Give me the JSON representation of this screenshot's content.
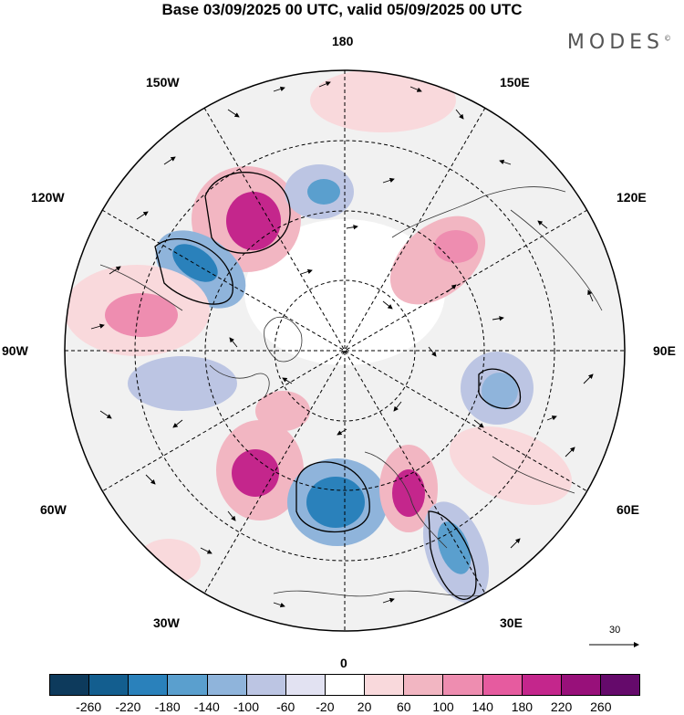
{
  "title": "Base 03/09/2025 00 UTC, valid 05/09/2025 00 UTC",
  "brand": "MODES",
  "brand_mark": "©",
  "longitude_labels": {
    "top": "180",
    "top_left": "150W",
    "top_right": "150E",
    "upper_left": "120W",
    "upper_right": "120E",
    "left": "90W",
    "right": "90E",
    "lower_left": "60W",
    "lower_right": "60E",
    "bottom_left": "30W",
    "bottom_right": "30E",
    "bottom": "0"
  },
  "wind_scale_label": "30",
  "colorbar": {
    "colors": [
      "#0d3a5c",
      "#135e8f",
      "#2a81bb",
      "#5a9fce",
      "#8fb4db",
      "#bcc5e3",
      "#e2e2f2",
      "#ffffff",
      "#f9d9dc",
      "#f2b6c2",
      "#ee8db0",
      "#e65b9f",
      "#c4268c",
      "#98107a",
      "#650a6b"
    ],
    "ticks": [
      "-260",
      "-220",
      "-180",
      "-140",
      "-100",
      "-60",
      "-20",
      "20",
      "60",
      "100",
      "140",
      "180",
      "220",
      "260"
    ]
  },
  "anomalies": [
    {
      "name": "positive-anomaly-alaska",
      "value": 240
    },
    {
      "name": "negative-anomaly-canada",
      "value": -180
    },
    {
      "name": "positive-anomaly-pacific",
      "value": 140
    },
    {
      "name": "negative-anomaly-beaufort",
      "value": -120
    },
    {
      "name": "positive-anomaly-siberia",
      "value": 160
    },
    {
      "name": "negative-anomaly-eurasia",
      "value": -130
    },
    {
      "name": "positive-anomaly-atlantic",
      "value": 230
    },
    {
      "name": "negative-anomaly-europe",
      "value": -200
    },
    {
      "name": "positive-anomaly-scandinavia",
      "value": 220
    },
    {
      "name": "negative-anomaly-caspian",
      "value": -150
    },
    {
      "name": "positive-anomaly-russia",
      "value": 80
    },
    {
      "name": "positive-anomaly-greenland",
      "value": 120
    }
  ]
}
